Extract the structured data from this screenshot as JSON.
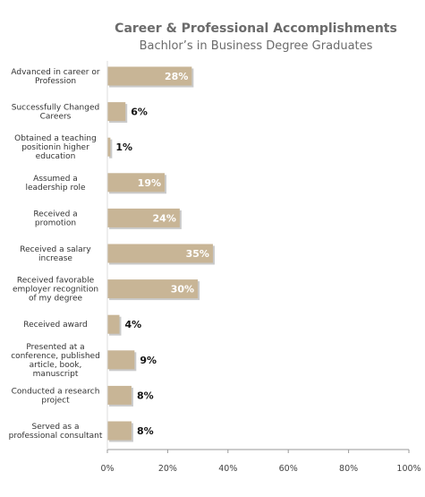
{
  "chart_data": {
    "type": "bar",
    "orientation": "horizontal",
    "title": "Career & Professional Accomplishments",
    "subtitle": "Bachlor’s in Business Degree Graduates",
    "categories": [
      [
        "Advanced in career or",
        "Profession"
      ],
      [
        "Successfully Changed",
        "Careers"
      ],
      [
        "Obtained a  teaching",
        "positionin higher",
        "education"
      ],
      [
        "Assumed a",
        "leadership role"
      ],
      [
        "Received a",
        "promotion"
      ],
      [
        "Received a salary",
        "increase"
      ],
      [
        "Received favorable",
        "employer recognition",
        "of my degree"
      ],
      [
        "Received award"
      ],
      [
        "Presented at a",
        "conference, published",
        "article, book,",
        "manuscript"
      ],
      [
        "Conducted a research",
        "project"
      ],
      [
        "Served as a",
        "professional consultant"
      ]
    ],
    "values": [
      28,
      6,
      1,
      19,
      24,
      35,
      30,
      4,
      9,
      8,
      8
    ],
    "value_labels": [
      "28%",
      "6%",
      "1%",
      "19%",
      "24%",
      "35%",
      "30%",
      "4%",
      "9%",
      "8%",
      "8%"
    ],
    "xlim": [
      0,
      100
    ],
    "x_ticks": [
      "0%",
      "20%",
      "40%",
      "60%",
      "80%",
      "100%"
    ],
    "grid": false,
    "legend": "none",
    "colors": {
      "bar": "#c8b596",
      "bar_shadow": "#9f9f9f",
      "axis": "#999999"
    }
  }
}
